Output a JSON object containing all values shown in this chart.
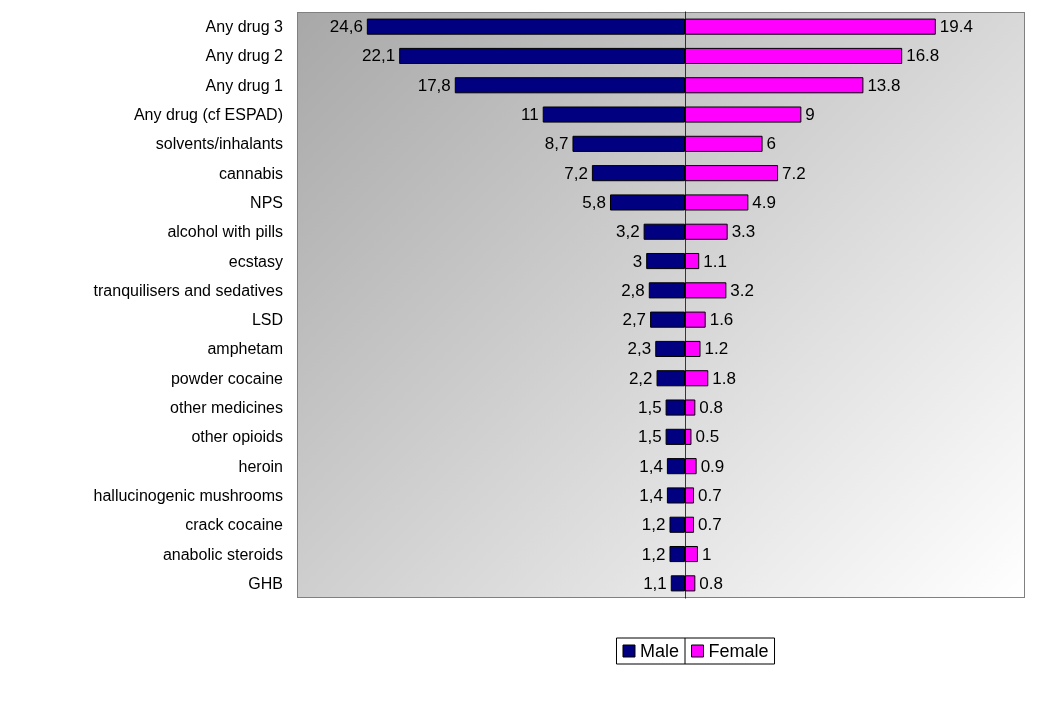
{
  "chart_data": [
    {
      "type": "bar",
      "orientation": "horizontal",
      "legend": "bottom",
      "grid": false,
      "tick_labels": "y",
      "xlim": [
        30,
        0
      ],
      "categories": [
        "Any drug 3",
        "Any drug 2",
        "Any drug 1",
        "Any drug (cf ESPAD)",
        "solvents/inhalants",
        "cannabis",
        "NPS",
        "alcohol with pills",
        "ecstasy",
        "tranquilisers and sedatives",
        "LSD",
        "amphetam",
        "powder cocaine",
        "other medicines",
        "other opioids",
        "heroin",
        "hallucinogenic mushrooms",
        "crack cocaine",
        "anabolic steroids",
        "GHB"
      ],
      "series": [
        {
          "name": "Male",
          "color": "#000080",
          "values": [
            24.6,
            22.1,
            17.8,
            11,
            8.7,
            7.2,
            5.8,
            3.2,
            3,
            2.8,
            2.7,
            2.3,
            2.2,
            1.5,
            1.5,
            1.4,
            1.4,
            1.2,
            1.2,
            1.1
          ],
          "value_labels": [
            "24,6",
            "22,1",
            "17,8",
            "11",
            "8,7",
            "7,2",
            "5,8",
            "3,2",
            "3",
            "2,8",
            "2,7",
            "2,3",
            "2,2",
            "1,5",
            "1,5",
            "1,4",
            "1,4",
            "1,2",
            "1,2",
            "1,1"
          ]
        }
      ]
    },
    {
      "type": "bar",
      "orientation": "horizontal",
      "legend": "bottom",
      "grid": false,
      "tick_labels": false,
      "xlim": [
        0,
        26.3
      ],
      "categories": [
        null,
        null,
        null,
        null,
        null,
        null,
        null,
        null,
        null,
        null,
        null,
        null,
        null,
        null,
        null,
        null,
        null,
        null,
        null,
        null
      ],
      "series": [
        {
          "name": "Female",
          "color": "#ff00ff",
          "values": [
            19.4,
            16.8,
            13.8,
            9,
            6,
            7.2,
            4.9,
            3.3,
            1.1,
            3.2,
            1.6,
            1.2,
            1.8,
            0.8,
            0.5,
            0.9,
            0.7,
            0.7,
            1,
            0.8
          ],
          "value_labels": [
            "19.4",
            "16.8",
            "13.8",
            "9",
            "6",
            "7.2",
            "4.9",
            "3.3",
            "1.1",
            "3.2",
            "1.6",
            "1.2",
            "1.8",
            "0.8",
            "0.5",
            "0.9",
            "0.7",
            "0.7",
            "1",
            "0.8"
          ]
        }
      ]
    }
  ]
}
